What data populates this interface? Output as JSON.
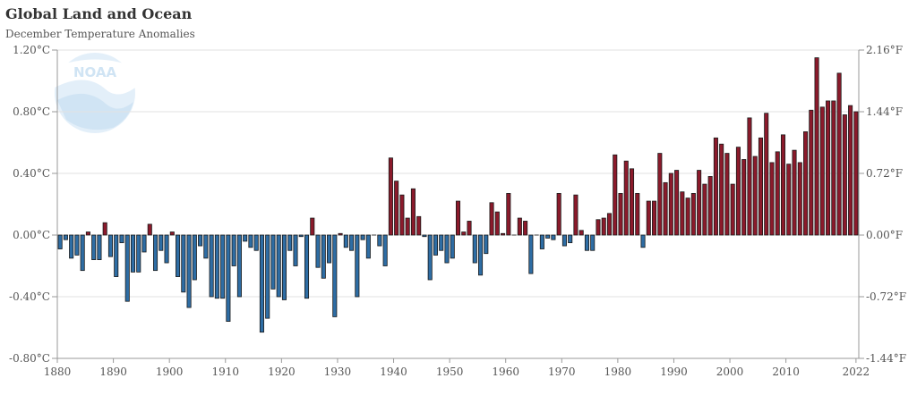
{
  "header": {
    "title": "Global Land and Ocean",
    "subtitle": "December Temperature Anomalies"
  },
  "logo": {
    "text": "NOAA"
  },
  "chart_data": {
    "type": "bar",
    "title": "Global Land and Ocean",
    "subtitle": "December Temperature Anomalies",
    "xlabel": "",
    "ylabel": "",
    "x_start": 1880,
    "x_end": 2022,
    "ylim": [
      -0.8,
      1.2
    ],
    "y_ticks": [
      -0.8,
      -0.4,
      0.0,
      0.4,
      0.8,
      1.2
    ],
    "y_tick_labels": [
      "-0.80°C",
      "-0.40°C",
      "0.00°C",
      "0.40°C",
      "0.80°C",
      "1.20°C"
    ],
    "y2_tick_labels": [
      "-1.44°F",
      "-0.72°F",
      "0.00°F",
      "0.72°F",
      "1.44°F",
      "2.16°F"
    ],
    "x_ticks": [
      1880,
      1890,
      1900,
      1910,
      1920,
      1930,
      1940,
      1950,
      1960,
      1970,
      1980,
      1990,
      2000,
      2010,
      2022
    ],
    "grid": true,
    "positive_color": "#8b1a2b",
    "negative_color": "#2e6da4",
    "bar_outline": "#1a1a1a",
    "values": [
      -0.09,
      -0.03,
      -0.15,
      -0.13,
      -0.23,
      0.02,
      -0.16,
      -0.16,
      0.08,
      -0.14,
      -0.27,
      -0.05,
      -0.43,
      -0.24,
      -0.24,
      -0.11,
      0.07,
      -0.23,
      -0.1,
      -0.18,
      0.02,
      -0.27,
      -0.37,
      -0.47,
      -0.29,
      -0.07,
      -0.15,
      -0.4,
      -0.41,
      -0.41,
      -0.56,
      -0.2,
      -0.4,
      -0.04,
      -0.08,
      -0.1,
      -0.63,
      -0.54,
      -0.35,
      -0.4,
      -0.42,
      -0.1,
      -0.2,
      -0.01,
      -0.41,
      0.11,
      -0.21,
      -0.28,
      -0.18,
      -0.53,
      0.01,
      -0.08,
      -0.1,
      -0.4,
      -0.03,
      -0.15,
      0.0,
      -0.07,
      -0.2,
      0.5,
      0.35,
      0.26,
      0.11,
      0.3,
      0.12,
      -0.01,
      -0.29,
      -0.13,
      -0.1,
      -0.18,
      -0.15,
      0.22,
      0.02,
      0.09,
      -0.18,
      -0.26,
      -0.12,
      0.21,
      0.15,
      0.01,
      0.27,
      0.0,
      0.11,
      0.09,
      -0.25,
      0.0,
      -0.09,
      -0.02,
      -0.03,
      0.27,
      -0.07,
      -0.05,
      0.26,
      0.03,
      -0.1,
      -0.1,
      0.1,
      0.11,
      0.14,
      0.52,
      0.27,
      0.48,
      0.43,
      0.27,
      -0.08,
      0.22,
      0.22,
      0.53,
      0.34,
      0.4,
      0.42,
      0.28,
      0.24,
      0.27,
      0.42,
      0.33,
      0.38,
      0.63,
      0.59,
      0.53,
      0.33,
      0.57,
      0.49,
      0.76,
      0.51,
      0.63,
      0.79,
      0.47,
      0.54,
      0.65,
      0.46,
      0.55,
      0.47,
      0.67,
      0.81,
      1.15,
      0.83,
      0.87,
      0.87,
      1.05,
      0.78,
      0.84,
      0.8
    ]
  }
}
